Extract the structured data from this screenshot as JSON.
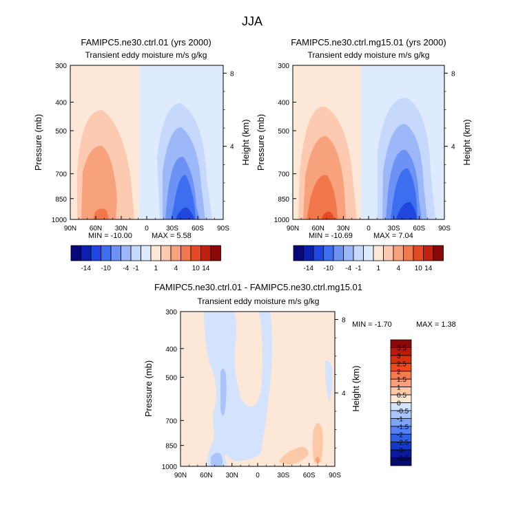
{
  "page": {
    "season_title": "JJA"
  },
  "chart_data": [
    {
      "type": "heatmap",
      "id": "panel1",
      "title": "FAMIPC5.ne30.ctrl.01 (yrs 2000)",
      "subtitle": "Transient eddy moisture m/s g/kg",
      "xlabel": "",
      "ylabel": "Pressure (mb)",
      "ylabel_right": "Height (km)",
      "x_ticks": [
        "90N",
        "60N",
        "30N",
        "0",
        "30S",
        "60S",
        "90S"
      ],
      "y_ticks": [
        "300",
        "400",
        "500",
        "700",
        "850",
        "1000"
      ],
      "height_ticks": [
        "8",
        "4"
      ],
      "min_label": "MIN = -10.00",
      "max_label": "MAX =   5.58",
      "colorbar_labels": [
        "-14",
        "-10",
        "-4",
        "-1",
        "1",
        "4",
        "10",
        "14"
      ]
    },
    {
      "type": "heatmap",
      "id": "panel2",
      "title": "FAMIPC5.ne30.ctrl.mg15.01 (yrs 2000)",
      "subtitle": "Transient eddy moisture m/s g/kg",
      "xlabel": "",
      "ylabel": "Pressure (mb)",
      "ylabel_right": "Height (km)",
      "x_ticks": [
        "90N",
        "60N",
        "30N",
        "0",
        "30S",
        "60S",
        "90S"
      ],
      "y_ticks": [
        "300",
        "400",
        "500",
        "700",
        "850",
        "1000"
      ],
      "height_ticks": [
        "8",
        "4"
      ],
      "min_label": "MIN = -10.69",
      "max_label": "MAX =   7.04",
      "colorbar_labels": [
        "-14",
        "-10",
        "-4",
        "-1",
        "1",
        "4",
        "10",
        "14"
      ]
    },
    {
      "type": "heatmap",
      "id": "panel3",
      "title": "FAMIPC5.ne30.ctrl.01 - FAMIPC5.ne30.ctrl.mg15.01",
      "subtitle": "Transient eddy moisture m/s g/kg",
      "xlabel": "",
      "ylabel": "Pressure (mb)",
      "ylabel_right": "Height (km)",
      "x_ticks": [
        "90N",
        "60N",
        "30N",
        "0",
        "30S",
        "60S",
        "90S"
      ],
      "y_ticks": [
        "300",
        "400",
        "500",
        "700",
        "850",
        "1000"
      ],
      "height_ticks": [
        "8",
        "4"
      ],
      "min_label": "MIN =   -1.70",
      "max_label": "MAX =    1.38",
      "colorbar_labels": [
        "3.5",
        "3",
        "2.5",
        "2",
        "1.5",
        "1",
        "0.5",
        "0",
        "-0.5",
        "-1",
        "-1.5",
        "-2",
        "-2.5",
        "-3",
        "-3.5"
      ]
    }
  ],
  "colors": {
    "main_scale": [
      "#08087a",
      "#0b1fb0",
      "#1f47e0",
      "#3d6ef0",
      "#6c92f5",
      "#9db8f8",
      "#c6d8fb",
      "#deeafd",
      "#fde8d8",
      "#fbcab0",
      "#f7a27c",
      "#f2774c",
      "#e54a24",
      "#c02010",
      "#8a0808"
    ],
    "diff_scale": [
      "#8a0808",
      "#b81a0c",
      "#d6300f",
      "#ee4a1c",
      "#f57a50",
      "#f9a07a",
      "#fbc8a8",
      "#fde8d8",
      "#d3e3fd",
      "#a9c4fa",
      "#7ea4f6",
      "#5582f2",
      "#3060e6",
      "#1637c8",
      "#091a9c",
      "#050a6e"
    ]
  }
}
